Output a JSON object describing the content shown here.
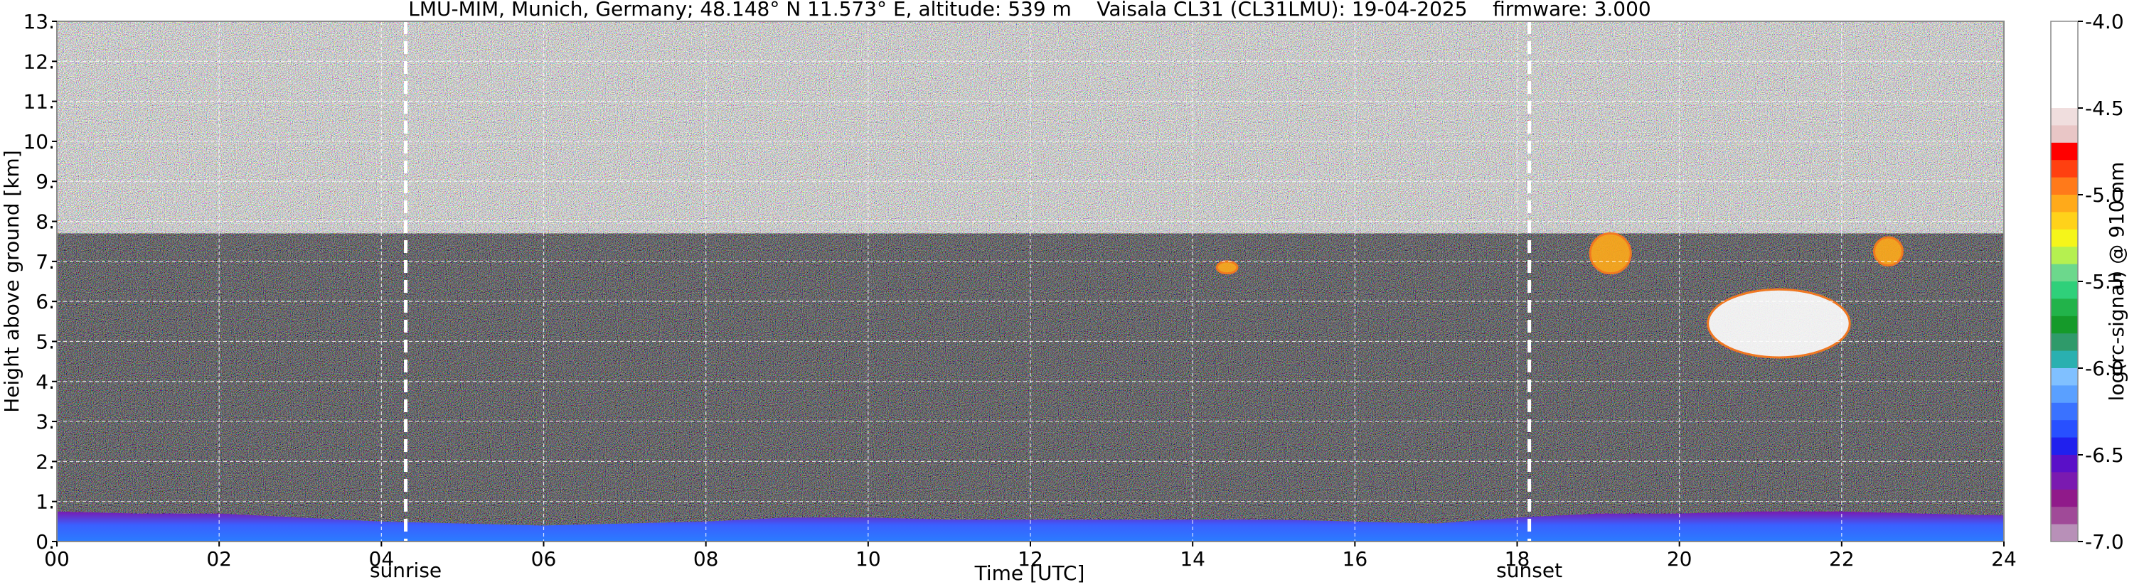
{
  "chart_data": {
    "type": "heatmap",
    "title": "LMU-MIM, Munich, Germany; 48.148° N 11.573° E, altitude: 539 m    Vaisala CL31 (CL31LMU): 19-04-2025    firmware: 3.000",
    "xlabel": "Time [UTC]",
    "ylabel": "Height above ground [km]",
    "xlim": [
      0,
      24
    ],
    "ylim": [
      0,
      13
    ],
    "x_ticks": [
      {
        "value": 0,
        "label": "00"
      },
      {
        "value": 2,
        "label": "02"
      },
      {
        "value": 4,
        "label": "04"
      },
      {
        "value": 6,
        "label": "06"
      },
      {
        "value": 8,
        "label": "08"
      },
      {
        "value": 10,
        "label": "10"
      },
      {
        "value": 12,
        "label": "12"
      },
      {
        "value": 14,
        "label": "14"
      },
      {
        "value": 16,
        "label": "16"
      },
      {
        "value": 18,
        "label": "18"
      },
      {
        "value": 20,
        "label": "20"
      },
      {
        "value": 22,
        "label": "22"
      },
      {
        "value": 24,
        "label": "24"
      }
    ],
    "y_ticks": [
      {
        "value": 0,
        "label": "0."
      },
      {
        "value": 1,
        "label": "1."
      },
      {
        "value": 2,
        "label": "2."
      },
      {
        "value": 3,
        "label": "3."
      },
      {
        "value": 4,
        "label": "4."
      },
      {
        "value": 5,
        "label": "5."
      },
      {
        "value": 6,
        "label": "6."
      },
      {
        "value": 7,
        "label": "7."
      },
      {
        "value": 8,
        "label": "8."
      },
      {
        "value": 9,
        "label": "9."
      },
      {
        "value": 10,
        "label": "10."
      },
      {
        "value": 11,
        "label": "11."
      },
      {
        "value": 12,
        "label": "12."
      },
      {
        "value": 13,
        "label": "13."
      }
    ],
    "grid": true,
    "measurement_top_km": 7.7,
    "events": [
      {
        "name": "sunrise",
        "time": 4.3
      },
      {
        "name": "sunset",
        "time": 18.15
      }
    ],
    "aerosol_layer": {
      "times": [
        0,
        1,
        2,
        3,
        4,
        5,
        6,
        7,
        8,
        9,
        10,
        11,
        12,
        13,
        14,
        15,
        16,
        17,
        18,
        19,
        20,
        21,
        22,
        23,
        24
      ],
      "top_km": [
        0.75,
        0.7,
        0.7,
        0.6,
        0.5,
        0.45,
        0.4,
        0.45,
        0.5,
        0.6,
        0.6,
        0.55,
        0.55,
        0.55,
        0.55,
        0.55,
        0.5,
        0.45,
        0.6,
        0.7,
        0.7,
        0.75,
        0.75,
        0.7,
        0.65
      ]
    },
    "cloud_features": [
      {
        "time_start": 20.35,
        "time_end": 22.1,
        "height_bottom_km": 4.6,
        "height_top_km": 6.3,
        "level": -4.0
      },
      {
        "time_start": 18.9,
        "time_end": 19.4,
        "height_bottom_km": 6.7,
        "height_top_km": 7.7,
        "level": -5.0
      },
      {
        "time_start": 22.4,
        "time_end": 22.75,
        "height_bottom_km": 6.9,
        "height_top_km": 7.6,
        "level": -5.0
      },
      {
        "time_start": 14.3,
        "time_end": 14.55,
        "height_bottom_km": 6.7,
        "height_top_km": 7.0,
        "level": -5.0
      }
    ],
    "colorbar": {
      "label": "log(rc-signal) @ 910 nm",
      "range": [
        -7.0,
        -4.0
      ],
      "ticks": [
        {
          "value": -4.0,
          "label": "-4.0"
        },
        {
          "value": -4.5,
          "label": "-4.5"
        },
        {
          "value": -5.0,
          "label": "-5.0"
        },
        {
          "value": -5.5,
          "label": "-5.5"
        },
        {
          "value": -6.0,
          "label": "-6.0"
        },
        {
          "value": -6.5,
          "label": "-6.5"
        },
        {
          "value": -7.0,
          "label": "-7.0"
        }
      ],
      "colors_top_to_bottom": [
        "#ffffff",
        "#ffffff",
        "#ffffff",
        "#ffffff",
        "#ffffff",
        "#f0dede",
        "#e9c6c6",
        "#ff0000",
        "#ff4010",
        "#ff7a1a",
        "#ffaa1a",
        "#ffd21a",
        "#f5f51a",
        "#b5f050",
        "#6cd88c",
        "#2fd07a",
        "#22b34a",
        "#159a2a",
        "#2f9a6a",
        "#2ab0b0",
        "#80c0ff",
        "#5aa0ff",
        "#3a72ff",
        "#2850ff",
        "#2020ee",
        "#5a10c8",
        "#7a1ab0",
        "#901a8a",
        "#a04a98",
        "#b890b8"
      ]
    }
  }
}
